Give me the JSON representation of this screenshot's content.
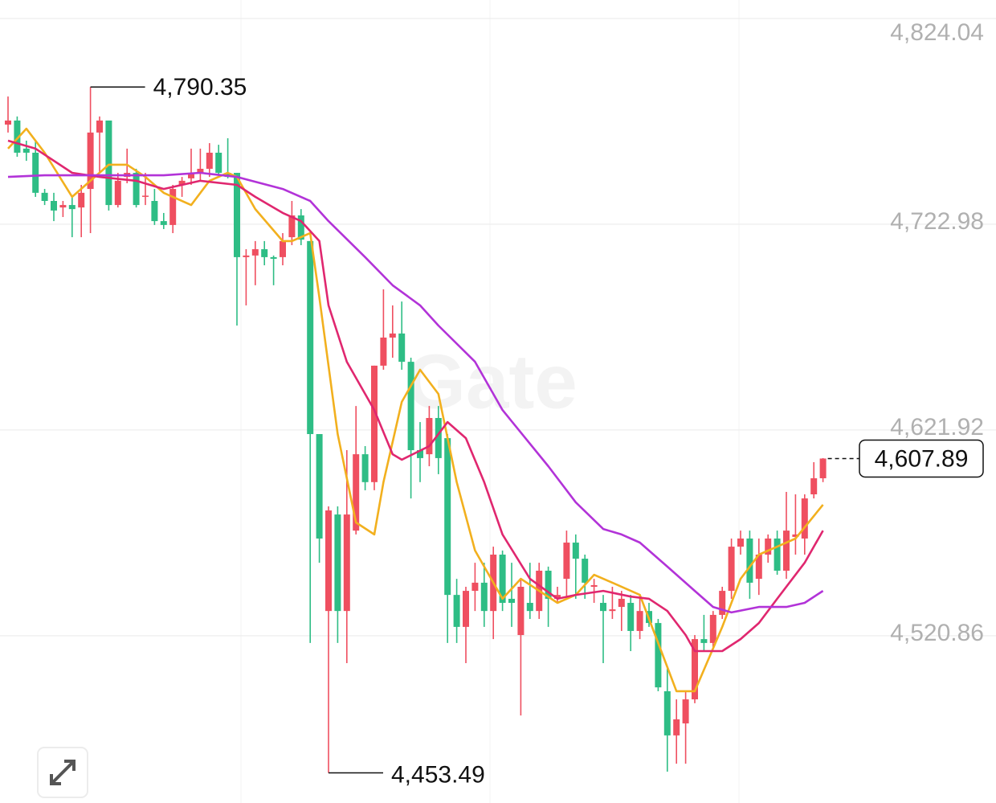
{
  "chart_data": {
    "type": "candlestick",
    "watermark": "Gate",
    "open": [
      4771.9,
      4773.9,
      4760.1,
      4758.1,
      4738.4,
      4734.4,
      4731.2,
      4732.4,
      4731.2,
      4740.3,
      4768.0,
      4773.9,
      4732.4,
      4746.2,
      4748.2,
      4736.4,
      4734.4,
      4724.5,
      4722.6,
      4742.3,
      4745.5,
      4748.2,
      4750.2,
      4758.1,
      4748.2,
      4748.2,
      4706.8,
      4707.6,
      4710.7,
      4706.8,
      4706.8,
      4716.6,
      4727.3,
      4714.7,
      4619.9,
      4533.0,
      4580.4,
      4533.0,
      4572.5,
      4610.0,
      4596.3,
      4653.5,
      4667.3,
      4669.3,
      4655.4,
      4612.0,
      4610.0,
      4627.8,
      4617.9,
      4540.9,
      4525.2,
      4542.9,
      4546.9,
      4533.0,
      4560.7,
      4539.0,
      4521.2,
      4537.0,
      4533.0,
      4552.8,
      4539.0,
      4548.8,
      4566.6,
      4558.7,
      4544.9,
      4537.0,
      4533.0,
      4535.0,
      4537.0,
      4523.2,
      4533.0,
      4527.1,
      4493.6,
      4471.9,
      4477.8,
      4489.6,
      4519.2,
      4517.3,
      4531.1,
      4542.9,
      4564.6,
      4568.6,
      4548.8,
      4560.7,
      4568.6,
      4552.8,
      4569.4,
      4568.6,
      4590.3,
      4598.2
    ],
    "high": [
      4785.7,
      4775.9,
      4764.0,
      4764.0,
      4740.3,
      4738.4,
      4734.4,
      4736.4,
      4742.3,
      4790.35,
      4775.9,
      4773.9,
      4748.2,
      4760.1,
      4750.2,
      4748.2,
      4740.3,
      4728.5,
      4742.3,
      4746.2,
      4760.1,
      4760.1,
      4762.8,
      4762.0,
      4765.2,
      4748.2,
      4710.7,
      4714.7,
      4714.7,
      4707.6,
      4718.6,
      4734.4,
      4730.4,
      4714.7,
      4619.9,
      4584.4,
      4584.4,
      4612.0,
      4633.7,
      4614.0,
      4653.5,
      4691.0,
      4683.1,
      4685.0,
      4657.4,
      4625.8,
      4633.7,
      4633.7,
      4619.9,
      4548.8,
      4544.9,
      4556.7,
      4556.7,
      4564.6,
      4562.7,
      4556.7,
      4548.8,
      4556.7,
      4556.7,
      4554.8,
      4544.9,
      4572.5,
      4570.6,
      4560.7,
      4548.8,
      4540.9,
      4544.9,
      4542.9,
      4540.9,
      4540.9,
      4537.0,
      4529.1,
      4505.4,
      4489.6,
      4493.6,
      4521.2,
      4531.1,
      4533.0,
      4544.9,
      4568.6,
      4572.5,
      4572.5,
      4568.6,
      4570.6,
      4572.5,
      4591.5,
      4590.3,
      4590.3,
      4606.1,
      4608.1
    ],
    "low": [
      4768.0,
      4756.1,
      4754.1,
      4736.4,
      4732.4,
      4724.5,
      4726.5,
      4716.6,
      4716.6,
      4718.6,
      4748.2,
      4729.7,
      4731.2,
      4743.1,
      4731.2,
      4732.4,
      4722.6,
      4720.6,
      4718.6,
      4736.4,
      4742.3,
      4744.3,
      4746.2,
      4746.2,
      4745.5,
      4673.2,
      4683.1,
      4693.0,
      4702.8,
      4693.0,
      4702.8,
      4712.7,
      4712.7,
      4517.3,
      4556.7,
      4453.49,
      4517.3,
      4507.4,
      4570.6,
      4592.3,
      4592.3,
      4651.5,
      4657.4,
      4651.5,
      4588.3,
      4596.3,
      4604.1,
      4600.2,
      4517.3,
      4517.3,
      4507.4,
      4533.0,
      4525.2,
      4519.2,
      4533.0,
      4525.2,
      4481.7,
      4529.1,
      4529.1,
      4525.2,
      4537.0,
      4539.0,
      4539.0,
      4539.0,
      4537.0,
      4507.4,
      4529.1,
      4523.2,
      4513.3,
      4519.2,
      4525.2,
      4493.6,
      4454.1,
      4458.0,
      4458.0,
      4487.7,
      4513.3,
      4515.3,
      4529.1,
      4539.0,
      4560.7,
      4539.0,
      4540.9,
      4556.7,
      4550.8,
      4548.8,
      4560.7,
      4560.7,
      4588.3,
      4596.3
    ],
    "close": [
      4773.9,
      4758.1,
      4758.1,
      4738.4,
      4734.4,
      4729.7,
      4732.4,
      4730.4,
      4738.4,
      4768.0,
      4773.9,
      4732.4,
      4744.3,
      4748.2,
      4732.4,
      4737.0,
      4724.5,
      4722.6,
      4740.3,
      4744.3,
      4748.2,
      4750.2,
      4758.1,
      4748.2,
      4746.2,
      4706.8,
      4707.6,
      4710.7,
      4706.8,
      4706.0,
      4714.7,
      4727.3,
      4715.4,
      4619.9,
      4568.6,
      4582.4,
      4533.0,
      4580.4,
      4610.0,
      4596.3,
      4653.5,
      4667.3,
      4669.3,
      4655.4,
      4612.0,
      4608.1,
      4627.8,
      4608.1,
      4540.9,
      4525.2,
      4542.9,
      4546.9,
      4533.0,
      4560.7,
      4537.0,
      4537.0,
      4544.9,
      4533.0,
      4552.8,
      4539.0,
      4540.9,
      4566.6,
      4558.7,
      4546.9,
      4545.7,
      4533.0,
      4533.8,
      4539.0,
      4523.2,
      4533.0,
      4527.1,
      4495.5,
      4471.9,
      4479.8,
      4489.6,
      4519.2,
      4517.3,
      4531.1,
      4542.9,
      4564.6,
      4568.6,
      4546.9,
      4560.7,
      4568.6,
      4552.8,
      4572.5,
      4570.6,
      4588.3,
      4598.2,
      4607.89
    ],
    "up_color": "#ef4f60",
    "down_color": "#2ebd85",
    "series": [
      {
        "color": "#f2b01e",
        "x": [
          0,
          2,
          4,
          7,
          9,
          11,
          13,
          15,
          17,
          20,
          22,
          24,
          25,
          27,
          30,
          31,
          33,
          34,
          36,
          38,
          40,
          41,
          43,
          45,
          47,
          49,
          51,
          54,
          56,
          60,
          62,
          64,
          66,
          69,
          71,
          73,
          75,
          78,
          80,
          82,
          84,
          86,
          89
        ],
        "values": [
          4760.1,
          4769.9,
          4758.1,
          4736.4,
          4744.3,
          4752.2,
          4752.2,
          4746.2,
          4738.4,
          4732.4,
          4744.3,
          4748.2,
          4746.2,
          4730.4,
          4714.7,
          4714.7,
          4718.6,
          4687.0,
          4619.9,
          4576.5,
          4570.6,
          4596.3,
          4635.7,
          4651.5,
          4639.6,
          4596.3,
          4562.7,
          4539.0,
          4548.8,
          4537.0,
          4540.9,
          4550.8,
          4546.9,
          4540.9,
          4517.3,
          4493.6,
          4493.6,
          4525.2,
          4548.8,
          4560.7,
          4564.6,
          4568.6,
          4585.2
        ]
      },
      {
        "color": "#e0276f",
        "x": [
          0,
          3,
          7,
          10,
          14,
          17,
          21,
          25,
          27,
          30,
          32,
          34,
          35,
          37,
          40,
          42,
          43,
          46,
          48,
          50,
          52,
          54,
          57,
          60,
          62,
          65,
          68,
          70,
          72,
          74,
          75,
          78,
          80,
          82,
          84,
          87,
          89
        ],
        "values": [
          4764.0,
          4760.1,
          4748.2,
          4746.2,
          4744.3,
          4740.3,
          4744.3,
          4742.3,
          4736.4,
          4728.5,
          4724.5,
          4714.7,
          4683.1,
          4655.4,
          4631.7,
          4610.0,
          4607.3,
          4614.0,
          4625.8,
          4617.9,
          4596.3,
          4570.6,
          4548.8,
          4539.0,
          4540.9,
          4542.9,
          4540.1,
          4539.0,
          4533.0,
          4521.2,
          4513.3,
          4513.3,
          4519.2,
          4527.1,
          4539.0,
          4556.7,
          4572.5
        ]
      },
      {
        "color": "#b233d8",
        "x": [
          0,
          4,
          8,
          17,
          21,
          25,
          30,
          33,
          35,
          39,
          42,
          45,
          47,
          51,
          54,
          59,
          62,
          65,
          67,
          69,
          72,
          75,
          77,
          79,
          82,
          85,
          87,
          89
        ],
        "values": [
          4746.2,
          4747.0,
          4747.0,
          4747.0,
          4748.2,
          4746.2,
          4740.3,
          4734.4,
          4724.5,
          4706.8,
          4693.0,
          4683.1,
          4673.2,
          4655.4,
          4631.7,
          4604.1,
          4586.4,
          4573.3,
          4570.6,
          4566.6,
          4554.8,
          4542.9,
          4535.0,
          4532.3,
          4535.0,
          4535.0,
          4537.0,
          4542.9
        ]
      }
    ],
    "ylim": [
      4438.7,
      4833.1
    ],
    "yticks": [
      {
        "value": 4824.04,
        "label": "4,824.04"
      },
      {
        "value": 4722.98,
        "label": "4,722.98"
      },
      {
        "value": 4621.92,
        "label": "4,621.92"
      },
      {
        "value": 4520.86,
        "label": "4,520.86"
      }
    ],
    "grid": true,
    "annotations": {
      "max": {
        "value": 4790.35,
        "label": "4,790.35"
      },
      "min": {
        "value": 4453.49,
        "label": "4,453.49"
      },
      "last": {
        "value": 4607.89,
        "label": "4,607.89"
      }
    }
  }
}
